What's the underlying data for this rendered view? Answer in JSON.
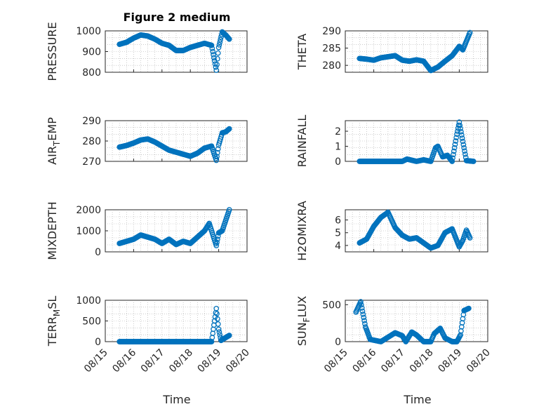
{
  "title": "Figure 2 medium",
  "xlabel": "Time",
  "marker_color": "#0072BD",
  "xticks": [
    "08/15",
    "08/16",
    "08/17",
    "08/18",
    "08/19",
    "08/20"
  ],
  "chart_data": [
    {
      "type": "scatter",
      "name": "pressure",
      "ylabel_parts": [
        "PRESSURE"
      ],
      "ylim": [
        800,
        1000
      ],
      "yticks": [
        800,
        900,
        1000
      ],
      "ytick_labels": [
        "800",
        "900",
        "1000"
      ],
      "x_range": [
        "08/15",
        "08/20"
      ],
      "x": [
        "08/15 12:00",
        "08/15 18:00",
        "08/16 00:00",
        "08/16 06:00",
        "08/16 12:00",
        "08/16 18:00",
        "08/17 00:00",
        "08/17 06:00",
        "08/17 12:00",
        "08/17 18:00",
        "08/18 00:00",
        "08/18 06:00",
        "08/18 12:00",
        "08/18 18:00",
        "08/18 22:00",
        "08/19 00:00",
        "08/19 03:00",
        "08/19 06:00",
        "08/19 09:00"
      ],
      "y": [
        935,
        945,
        965,
        980,
        975,
        960,
        940,
        930,
        905,
        905,
        920,
        930,
        940,
        930,
        810,
        920,
        995,
        980,
        960
      ]
    },
    {
      "type": "scatter",
      "name": "theta",
      "ylabel_parts": [
        "THETA"
      ],
      "ylim": [
        278,
        290
      ],
      "yticks": [
        280,
        285,
        290
      ],
      "ytick_labels": [
        "280",
        "285",
        "290"
      ],
      "x_range": [
        "08/15",
        "08/20"
      ],
      "x": [
        "08/15 12:00",
        "08/15 18:00",
        "08/16 00:00",
        "08/16 06:00",
        "08/16 12:00",
        "08/16 18:00",
        "08/17 00:00",
        "08/17 06:00",
        "08/17 12:00",
        "08/17 18:00",
        "08/18 00:00",
        "08/18 06:00",
        "08/18 12:00",
        "08/18 18:00",
        "08/19 00:00",
        "08/19 03:00",
        "08/19 06:00",
        "08/19 09:00"
      ],
      "y": [
        282,
        281.8,
        281.5,
        282.2,
        282.5,
        282.8,
        281.5,
        281.2,
        281.6,
        281.2,
        278.5,
        279.5,
        281.2,
        282.8,
        285.5,
        284.5,
        287,
        289.5
      ]
    },
    {
      "type": "scatter",
      "name": "air_temp",
      "ylabel_parts": [
        "AIR",
        "T",
        "EMP"
      ],
      "ylim": [
        270,
        290
      ],
      "yticks": [
        270,
        280,
        290
      ],
      "ytick_labels": [
        "270",
        "280",
        "290"
      ],
      "x_range": [
        "08/15",
        "08/20"
      ],
      "x": [
        "08/15 12:00",
        "08/15 18:00",
        "08/16 00:00",
        "08/16 06:00",
        "08/16 12:00",
        "08/16 18:00",
        "08/17 00:00",
        "08/17 06:00",
        "08/17 12:00",
        "08/17 18:00",
        "08/18 00:00",
        "08/18 06:00",
        "08/18 12:00",
        "08/18 18:00",
        "08/18 22:00",
        "08/19 00:00",
        "08/19 03:00",
        "08/19 06:00",
        "08/19 09:00"
      ],
      "y": [
        277,
        277.8,
        279,
        280.5,
        281,
        279.5,
        277.5,
        275.5,
        274.5,
        273.5,
        272.5,
        274,
        276.5,
        277.5,
        270.5,
        278,
        284,
        284.5,
        286
      ]
    },
    {
      "type": "scatter",
      "name": "rainfall",
      "ylabel_parts": [
        "RAINFALL"
      ],
      "ylim": [
        0,
        2.7
      ],
      "yticks": [
        0,
        1,
        2
      ],
      "ytick_labels": [
        "0",
        "1",
        "2"
      ],
      "x_range": [
        "08/15",
        "08/20"
      ],
      "x": [
        "08/15 12:00",
        "08/15 18:00",
        "08/16 00:00",
        "08/16 06:00",
        "08/16 12:00",
        "08/16 18:00",
        "08/17 00:00",
        "08/17 04:00",
        "08/17 12:00",
        "08/17 18:00",
        "08/18 00:00",
        "08/18 04:00",
        "08/18 06:00",
        "08/18 10:00",
        "08/18 14:00",
        "08/18 18:00",
        "08/18 22:00",
        "08/19 00:00",
        "08/19 06:00",
        "08/19 12:00"
      ],
      "y": [
        0,
        0,
        0,
        0,
        0,
        0,
        0,
        0.15,
        0,
        0.1,
        0,
        0.9,
        1.0,
        0.3,
        0.4,
        0,
        1.8,
        2.6,
        0.05,
        0
      ]
    },
    {
      "type": "scatter",
      "name": "mixdepth",
      "ylabel_parts": [
        "MIXDEPTH"
      ],
      "ylim": [
        0,
        2000
      ],
      "yticks": [
        0,
        1000,
        2000
      ],
      "ytick_labels": [
        "0",
        "1000",
        "2000"
      ],
      "x_range": [
        "08/15",
        "08/20"
      ],
      "x": [
        "08/15 12:00",
        "08/15 18:00",
        "08/16 00:00",
        "08/16 06:00",
        "08/16 12:00",
        "08/16 18:00",
        "08/17 00:00",
        "08/17 06:00",
        "08/17 12:00",
        "08/17 18:00",
        "08/18 00:00",
        "08/18 06:00",
        "08/18 12:00",
        "08/18 16:00",
        "08/18 22:00",
        "08/19 00:00",
        "08/19 03:00",
        "08/19 06:00",
        "08/19 09:00"
      ],
      "y": [
        400,
        500,
        600,
        800,
        700,
        600,
        400,
        600,
        350,
        500,
        400,
        700,
        1000,
        1350,
        300,
        900,
        1000,
        1500,
        2000
      ]
    },
    {
      "type": "scatter",
      "name": "h2omixra",
      "ylabel_parts": [
        "H2OMIXRA"
      ],
      "ylim": [
        3.5,
        6.8
      ],
      "yticks": [
        4,
        5,
        6
      ],
      "ytick_labels": [
        "4",
        "5",
        "6"
      ],
      "x_range": [
        "08/15",
        "08/20"
      ],
      "x": [
        "08/15 12:00",
        "08/15 18:00",
        "08/16 00:00",
        "08/16 06:00",
        "08/16 12:00",
        "08/16 18:00",
        "08/17 00:00",
        "08/17 06:00",
        "08/17 12:00",
        "08/17 18:00",
        "08/18 00:00",
        "08/18 06:00",
        "08/18 12:00",
        "08/18 18:00",
        "08/19 00:00",
        "08/19 03:00",
        "08/19 06:00",
        "08/19 09:00"
      ],
      "y": [
        4.2,
        4.5,
        5.5,
        6.2,
        6.6,
        5.4,
        4.8,
        4.5,
        4.6,
        4.2,
        3.8,
        4.0,
        5.0,
        5.3,
        3.9,
        4.4,
        5.2,
        4.6
      ]
    },
    {
      "type": "scatter",
      "name": "terr_msl",
      "ylabel_parts": [
        "TERR",
        "M",
        "SL"
      ],
      "ylim": [
        0,
        1000
      ],
      "yticks": [
        0,
        500,
        1000
      ],
      "ytick_labels": [
        "0",
        "500",
        "1000"
      ],
      "x_range": [
        "08/15",
        "08/20"
      ],
      "x": [
        "08/15 12:00",
        "08/16 00:00",
        "08/16 12:00",
        "08/17 00:00",
        "08/17 12:00",
        "08/18 00:00",
        "08/18 12:00",
        "08/18 18:00",
        "08/18 22:00",
        "08/19 00:00",
        "08/19 02:00",
        "08/19 06:00",
        "08/19 09:00"
      ],
      "y": [
        0,
        0,
        0,
        0,
        0,
        0,
        0,
        0,
        800,
        300,
        30,
        100,
        150
      ]
    },
    {
      "type": "scatter",
      "name": "sun_flux",
      "ylabel_parts": [
        "SUN",
        "F",
        "LUX"
      ],
      "ylim": [
        0,
        560
      ],
      "yticks": [
        0,
        500
      ],
      "ytick_labels": [
        "0",
        "500"
      ],
      "x_range": [
        "08/15",
        "08/20"
      ],
      "x": [
        "08/15 09:00",
        "08/15 13:00",
        "08/15 17:00",
        "08/15 21:00",
        "08/16 06:00",
        "08/16 12:00",
        "08/16 18:00",
        "08/17 00:00",
        "08/17 03:00",
        "08/17 08:00",
        "08/17 12:00",
        "08/17 18:00",
        "08/18 00:00",
        "08/18 03:00",
        "08/18 08:00",
        "08/18 12:00",
        "08/18 18:00",
        "08/18 22:00",
        "08/19 01:00",
        "08/19 04:00",
        "08/19 08:00"
      ],
      "y": [
        400,
        540,
        200,
        30,
        0,
        60,
        120,
        80,
        0,
        130,
        90,
        0,
        0,
        110,
        180,
        50,
        0,
        0,
        90,
        420,
        450
      ]
    }
  ]
}
